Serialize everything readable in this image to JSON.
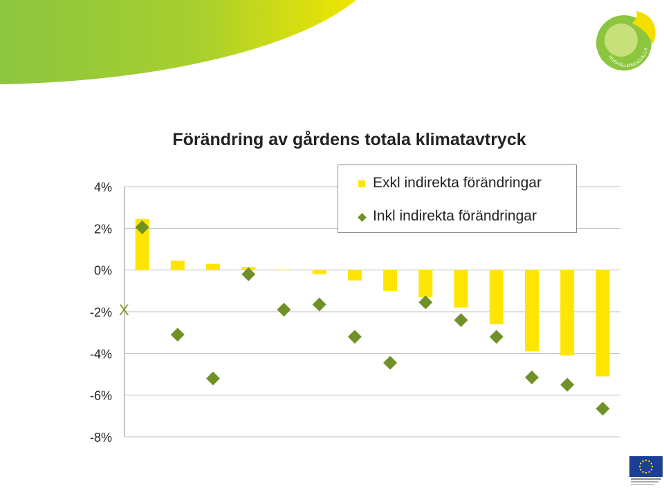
{
  "chart_data": {
    "type": "bar",
    "title": "Förändring av gårdens totala klimatavtryck",
    "ylim": [
      -8,
      4
    ],
    "yticks": [
      "4%",
      "2%",
      "0%",
      "-2%",
      "-4%",
      "-6%",
      "-8%"
    ],
    "ytick_values": [
      4,
      2,
      0,
      -2,
      -4,
      -6,
      -8
    ],
    "grid": true,
    "legend_position": "top-right",
    "annotation": "X",
    "series": [
      {
        "name": "Exkl indirekta förändringar",
        "marker": "bar",
        "color": "#ffe600",
        "values": [
          2.45,
          0.45,
          0.3,
          0.15,
          0.02,
          -0.2,
          -0.5,
          -1.0,
          -1.3,
          -1.8,
          -2.6,
          -3.9,
          -4.1,
          -5.1
        ]
      },
      {
        "name": "Inkl indirekta förändringar",
        "marker": "diamond",
        "color": "#6f9127",
        "values": [
          2.05,
          -3.1,
          -5.2,
          -0.2,
          -1.9,
          -1.65,
          -3.2,
          -4.45,
          -1.55,
          -2.4,
          -3.2,
          -5.15,
          -5.5,
          -6.65
        ]
      }
    ]
  },
  "legend": {
    "bar_label": "Exkl indirekta förändringar",
    "diamond_label": "Inkl indirekta förändringar"
  },
  "colors": {
    "accent_green": "#8cc63f",
    "accent_yellow": "#ffe600",
    "diamond_green": "#6f9127"
  },
  "icons": {
    "logo": "hushallningssallskapet-logo",
    "eu": "eu-flag-icon"
  },
  "logo_text": "HUSHÅLLNINGSSÄLLSKAPET"
}
